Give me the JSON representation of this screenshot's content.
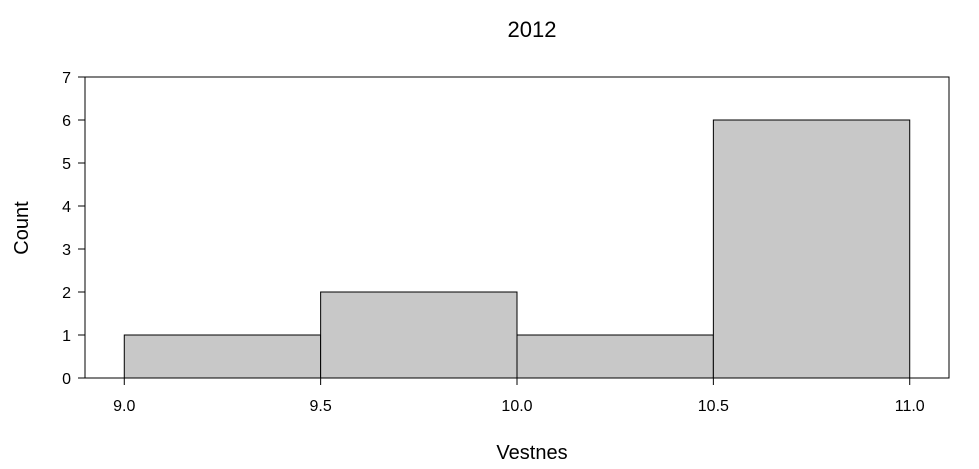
{
  "chart_data": {
    "type": "bar",
    "title": "2012",
    "xlabel": "Vestnes",
    "ylabel": "Count",
    "bins": [
      {
        "x0": 9.0,
        "x1": 9.5,
        "count": 1
      },
      {
        "x0": 9.5,
        "x1": 10.0,
        "count": 2
      },
      {
        "x0": 10.0,
        "x1": 10.5,
        "count": 1
      },
      {
        "x0": 10.5,
        "x1": 11.0,
        "count": 6
      }
    ],
    "xticks": [
      "9.0",
      "9.5",
      "10.0",
      "10.5",
      "11.0"
    ],
    "yticks": [
      "0",
      "1",
      "2",
      "3",
      "4",
      "5",
      "6",
      "7"
    ],
    "xlim": [
      8.9,
      11.1
    ],
    "ylim": [
      0,
      7
    ],
    "grid": false,
    "colors": {
      "bar_fill": "#c8c8c8",
      "bar_stroke": "#000000"
    }
  }
}
